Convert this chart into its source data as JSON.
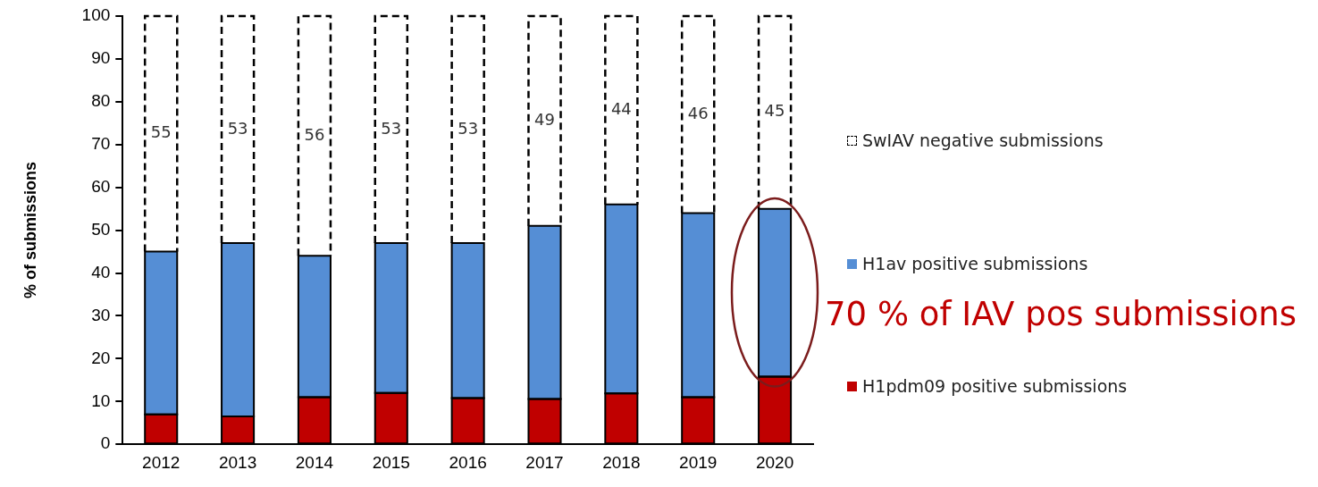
{
  "chart_data": {
    "type": "bar",
    "stacked": true,
    "ylabel": "% of submissions",
    "categories": [
      "2012",
      "2013",
      "2014",
      "2015",
      "2016",
      "2017",
      "2018",
      "2019",
      "2020"
    ],
    "series": [
      {
        "name": "H1pdm09 positive submissions",
        "color": "#c00000",
        "values": [
          7,
          6.5,
          11,
          12,
          10.8,
          10.6,
          11.9,
          11,
          15.8
        ]
      },
      {
        "name": "H1av positive submissions",
        "color": "#558ed5",
        "values": [
          38,
          40.5,
          33,
          35,
          36.2,
          40.4,
          44.1,
          43,
          39.2
        ]
      },
      {
        "name": "SwIAV negative submissions",
        "color": "#ffffff",
        "line_style": "dashed",
        "values": [
          55,
          53,
          56,
          53,
          53,
          49,
          44,
          46,
          45
        ],
        "value_labels": [
          "55",
          "53",
          "56",
          "53",
          "53",
          "49",
          "44",
          "46",
          "45"
        ]
      }
    ],
    "ylim": [
      0,
      100
    ],
    "yticks": [
      0,
      10,
      20,
      30,
      40,
      50,
      60,
      70,
      80,
      90,
      100
    ],
    "grid": false,
    "legend": "right",
    "annotations": [
      "70 % of IAV pos submissions"
    ]
  }
}
